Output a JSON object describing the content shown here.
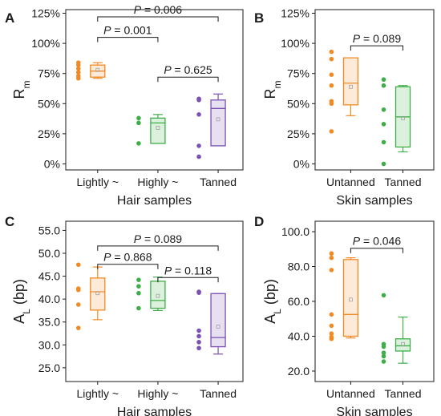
{
  "colors": {
    "orange": "#f28a24",
    "green": "#3fae49",
    "purple": "#7b51b2"
  },
  "chart_data": [
    {
      "panel": "A",
      "type": "box",
      "ylabel_main": "R",
      "ylabel_sub": "m",
      "xlabel": "Hair samples",
      "ylim": [
        -0.05,
        1.28
      ],
      "yticks": [
        0,
        0.25,
        0.5,
        0.75,
        1.0,
        1.25
      ],
      "ytick_labels": [
        "0%",
        "25%",
        "50%",
        "75%",
        "100%",
        "125%"
      ],
      "categories": [
        "Lightly ~",
        "Highly ~",
        "Tanned"
      ],
      "series": [
        {
          "color": "orange",
          "points": [
            0.84,
            0.82,
            0.79,
            0.76,
            0.73,
            0.71
          ],
          "box": {
            "q1": 0.72,
            "median": 0.77,
            "q3": 0.82,
            "min": 0.71,
            "max": 0.84,
            "mean": 0.78
          }
        },
        {
          "color": "green",
          "points": [
            0.38,
            0.34,
            0.17
          ],
          "box": {
            "q1": 0.17,
            "median": 0.34,
            "q3": 0.38,
            "min": 0.17,
            "max": 0.41,
            "mean": 0.3
          }
        },
        {
          "color": "purple",
          "points": [
            0.54,
            0.53,
            0.41,
            0.15,
            0.06
          ],
          "box": {
            "q1": 0.15,
            "median": 0.46,
            "q3": 0.53,
            "min": 0.15,
            "max": 0.58,
            "mean": 0.37
          }
        }
      ],
      "comparisons": [
        {
          "from": 0,
          "to": 1,
          "y": 1.05,
          "label": "P = 0.001"
        },
        {
          "from": 0,
          "to": 2,
          "y": 1.22,
          "label": "P = 0.006"
        },
        {
          "from": 1,
          "to": 2,
          "y": 0.72,
          "label": "P = 0.625"
        }
      ]
    },
    {
      "panel": "B",
      "type": "box",
      "ylabel_main": "R",
      "ylabel_sub": "m",
      "xlabel": "Skin samples",
      "ylim": [
        -0.05,
        1.28
      ],
      "yticks": [
        0,
        0.25,
        0.5,
        0.75,
        1.0,
        1.25
      ],
      "ytick_labels": [
        "0%",
        "25%",
        "50%",
        "75%",
        "100%",
        "125%"
      ],
      "categories": [
        "Untanned",
        "Tanned"
      ],
      "series": [
        {
          "color": "orange",
          "points": [
            0.93,
            0.87,
            0.74,
            0.65,
            0.52,
            0.5,
            0.27
          ],
          "box": {
            "q1": 0.49,
            "median": 0.67,
            "q3": 0.88,
            "min": 0.4,
            "max": 0.88,
            "mean": 0.64
          }
        },
        {
          "color": "green",
          "points": [
            0.7,
            0.65,
            0.45,
            0.33,
            0.18,
            0.0
          ],
          "box": {
            "q1": 0.14,
            "median": 0.39,
            "q3": 0.64,
            "min": 0.1,
            "max": 0.65,
            "mean": 0.38
          }
        }
      ],
      "comparisons": [
        {
          "from": 0,
          "to": 1,
          "y": 0.98,
          "label": "P = 0.089"
        }
      ]
    },
    {
      "panel": "C",
      "type": "box",
      "ylabel_main": "A",
      "ylabel_sub": "L",
      "ylabel_suffix": " (bp)",
      "xlabel": "Hair samples",
      "ylim": [
        22.0,
        57.0
      ],
      "yticks": [
        25,
        30,
        35,
        40,
        45,
        50,
        55
      ],
      "ytick_labels": [
        "25.0",
        "30.0",
        "35.0",
        "40.0",
        "45.0",
        "50.0",
        "55.0"
      ],
      "categories": [
        "Lightly ~",
        "Highly ~",
        "Tanned"
      ],
      "series": [
        {
          "color": "orange",
          "points": [
            47.5,
            42.3,
            42.0,
            38.8,
            33.7
          ],
          "box": {
            "q1": 37.6,
            "median": 41.6,
            "q3": 44.6,
            "min": 35.5,
            "max": 47.0,
            "mean": 41.3
          }
        },
        {
          "color": "green",
          "points": [
            44.2,
            42.8,
            41.3,
            38.0
          ],
          "box": {
            "q1": 38.0,
            "median": 39.7,
            "q3": 43.9,
            "min": 37.5,
            "max": 44.8,
            "mean": 40.7
          }
        },
        {
          "color": "purple",
          "points": [
            41.6,
            41.4,
            33.1,
            31.9,
            30.6,
            29.3
          ],
          "box": {
            "q1": 29.6,
            "median": 31.6,
            "q3": 41.2,
            "min": 28.0,
            "max": 41.2,
            "mean": 34.0
          }
        }
      ],
      "comparisons": [
        {
          "from": 0,
          "to": 1,
          "y": 47.6,
          "label": "P = 0.868"
        },
        {
          "from": 0,
          "to": 2,
          "y": 51.6,
          "label": "P = 0.089"
        },
        {
          "from": 1,
          "to": 2,
          "y": 44.7,
          "label": "P = 0.118"
        }
      ]
    },
    {
      "panel": "D",
      "type": "box",
      "ylabel_main": "A",
      "ylabel_sub": "L",
      "ylabel_suffix": " (bp)",
      "xlabel": "Skin samples",
      "ylim": [
        14.0,
        106.0
      ],
      "yticks": [
        20,
        40,
        60,
        80,
        100
      ],
      "ytick_labels": [
        "20.0",
        "40.0",
        "60.0",
        "80.0",
        "100.0"
      ],
      "categories": [
        "Untanned",
        "Tanned"
      ],
      "series": [
        {
          "color": "orange",
          "points": [
            87.5,
            85.0,
            78.0,
            52.5,
            46.0,
            41.5,
            39.5,
            38.5
          ],
          "box": {
            "q1": 40.0,
            "median": 52.5,
            "q3": 84.0,
            "min": 39.0,
            "max": 85.0,
            "mean": 61.0
          }
        },
        {
          "color": "green",
          "points": [
            63.5,
            35.5,
            34.0,
            30.5,
            28.5,
            25.5
          ],
          "box": {
            "q1": 31.5,
            "median": 34.5,
            "q3": 38.5,
            "min": 24.5,
            "max": 51.0,
            "mean": 35.5
          }
        }
      ],
      "comparisons": [
        {
          "from": 0,
          "to": 1,
          "y": 90.5,
          "label": "P = 0.046"
        }
      ]
    }
  ]
}
